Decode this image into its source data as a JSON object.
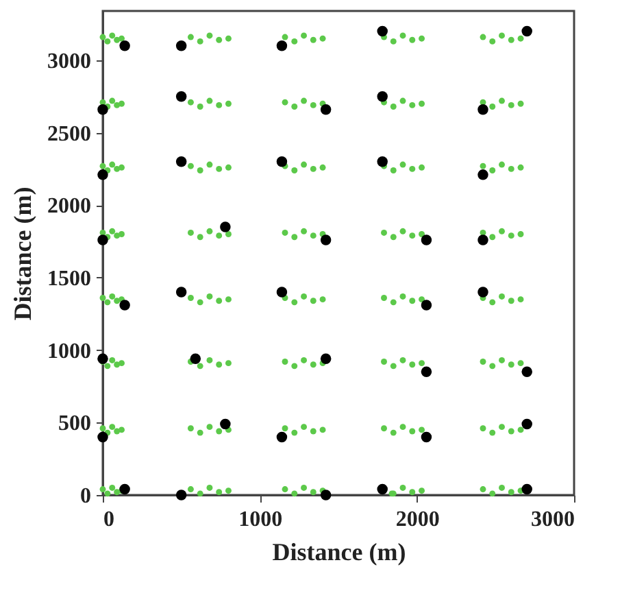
{
  "chart_data": {
    "type": "scatter",
    "xlabel": "Distance  (m)",
    "ylabel": "Distance (m)",
    "xlim": [
      0,
      3000
    ],
    "ylim": [
      0,
      3340
    ],
    "xticks": [
      0,
      1000,
      2000,
      3000
    ],
    "yticks": [
      0,
      500,
      1000,
      1500,
      2000,
      2500,
      3000
    ],
    "grid": false,
    "marker": "circle",
    "series": [
      {
        "color": "#5cc94a",
        "x": [
          0,
          30,
          60,
          90,
          120,
          560,
          620,
          680,
          740,
          800,
          1160,
          1220,
          1280,
          1340,
          1400,
          1790,
          1850,
          1910,
          1970,
          2030,
          2420,
          2480,
          2540,
          2600,
          2660,
          0,
          30,
          60,
          90,
          120,
          560,
          620,
          680,
          740,
          800,
          1160,
          1220,
          1280,
          1340,
          1400,
          1790,
          1850,
          1910,
          1970,
          2030,
          2420,
          2480,
          2540,
          2600,
          2660,
          0,
          30,
          60,
          90,
          120,
          560,
          620,
          680,
          740,
          800,
          1160,
          1220,
          1280,
          1340,
          1400,
          1790,
          1850,
          1910,
          1970,
          2030,
          2420,
          2480,
          2540,
          2600,
          2660,
          0,
          30,
          60,
          90,
          120,
          560,
          620,
          680,
          740,
          800,
          1160,
          1220,
          1280,
          1340,
          1400,
          1790,
          1850,
          1910,
          1970,
          2030,
          2420,
          2480,
          2540,
          2600,
          2660,
          0,
          30,
          60,
          90,
          120,
          560,
          620,
          680,
          740,
          800,
          1160,
          1220,
          1280,
          1340,
          1400,
          1790,
          1850,
          1910,
          1970,
          2030,
          2420,
          2480,
          2540,
          2600,
          2660,
          0,
          30,
          60,
          90,
          120,
          560,
          620,
          680,
          740,
          800,
          1160,
          1220,
          1280,
          1340,
          1400,
          1790,
          1850,
          1910,
          1970,
          2030,
          2420,
          2480,
          2540,
          2600,
          2660,
          0,
          30,
          60,
          90,
          120,
          560,
          620,
          680,
          740,
          800,
          1160,
          1220,
          1280,
          1340,
          1400,
          1790,
          1850,
          1910,
          1970,
          2030,
          2420,
          2480,
          2540,
          2600,
          2660,
          0,
          30,
          60,
          90,
          120,
          560,
          620,
          680,
          740,
          800,
          1160,
          1220,
          1280,
          1340,
          1400,
          1840,
          1850,
          1910,
          1970,
          2030,
          2420,
          2480,
          2540,
          2600,
          2660
        ],
        "values": [
          3160,
          3130,
          3170,
          3140,
          3150,
          3160,
          3130,
          3170,
          3140,
          3150,
          3160,
          3130,
          3170,
          3140,
          3150,
          3160,
          3130,
          3170,
          3140,
          3150,
          3160,
          3130,
          3170,
          3140,
          3150,
          2710,
          2680,
          2720,
          2690,
          2700,
          2710,
          2680,
          2720,
          2690,
          2700,
          2710,
          2680,
          2720,
          2690,
          2700,
          2710,
          2680,
          2720,
          2690,
          2700,
          2710,
          2680,
          2720,
          2690,
          2700,
          2270,
          2240,
          2280,
          2250,
          2260,
          2270,
          2240,
          2280,
          2250,
          2260,
          2270,
          2240,
          2280,
          2250,
          2260,
          2270,
          2240,
          2280,
          2250,
          2260,
          2270,
          2240,
          2280,
          2250,
          2260,
          1810,
          1780,
          1820,
          1790,
          1800,
          1810,
          1780,
          1820,
          1790,
          1800,
          1810,
          1780,
          1820,
          1790,
          1800,
          1810,
          1780,
          1820,
          1790,
          1800,
          1810,
          1780,
          1820,
          1790,
          1800,
          1360,
          1330,
          1370,
          1340,
          1350,
          1360,
          1330,
          1370,
          1340,
          1350,
          1360,
          1330,
          1370,
          1340,
          1350,
          1360,
          1330,
          1370,
          1340,
          1350,
          1360,
          1330,
          1370,
          1340,
          1350,
          920,
          890,
          930,
          900,
          910,
          920,
          890,
          930,
          900,
          910,
          920,
          890,
          930,
          900,
          910,
          920,
          890,
          930,
          900,
          910,
          920,
          890,
          930,
          900,
          910,
          460,
          430,
          470,
          440,
          450,
          460,
          430,
          470,
          440,
          450,
          460,
          430,
          470,
          440,
          450,
          460,
          430,
          470,
          440,
          450,
          460,
          430,
          470,
          440,
          450,
          40,
          10,
          50,
          20,
          30,
          40,
          10,
          50,
          20,
          30,
          40,
          10,
          50,
          20,
          30,
          10,
          10,
          50,
          20,
          30,
          40,
          10,
          50,
          20,
          30
        ]
      },
      {
        "color": "#000000",
        "x": [
          140,
          500,
          1140,
          1780,
          2700,
          0,
          500,
          1420,
          1780,
          2420,
          0,
          500,
          1140,
          1780,
          2420,
          0,
          780,
          1420,
          2060,
          2420,
          140,
          500,
          1140,
          2060,
          2420,
          0,
          590,
          1420,
          2060,
          2700,
          0,
          780,
          1140,
          2060,
          2700,
          140,
          500,
          1420,
          1780,
          2700
        ],
        "values": [
          3100,
          3100,
          3100,
          3200,
          3200,
          2660,
          2750,
          2660,
          2750,
          2660,
          2210,
          2300,
          2300,
          2300,
          2210,
          1760,
          1850,
          1760,
          1760,
          1760,
          1310,
          1400,
          1400,
          1310,
          1400,
          940,
          940,
          940,
          850,
          850,
          400,
          490,
          400,
          400,
          490,
          40,
          0,
          0,
          40,
          40
        ]
      }
    ]
  }
}
